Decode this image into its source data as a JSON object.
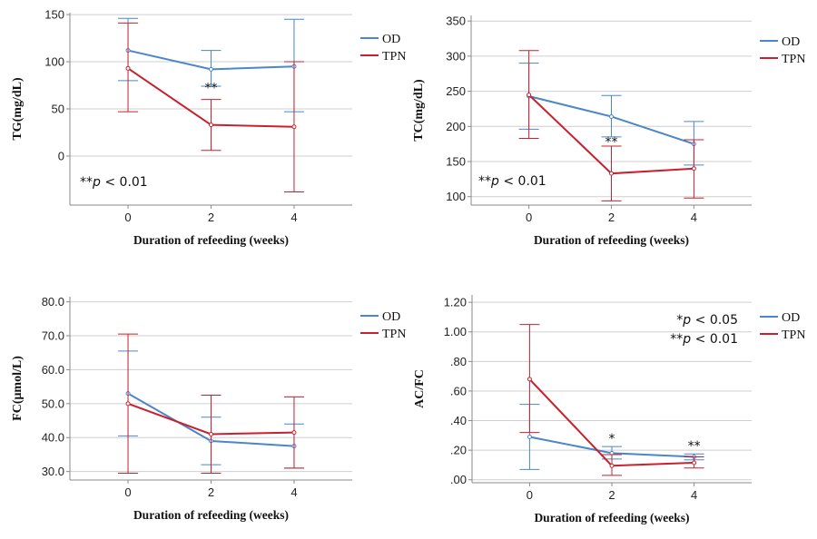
{
  "colors": {
    "OD": "#4a86c8",
    "TPN": "#c8202e",
    "grid": "#cfcfcf",
    "axis": "#8a8a8a"
  },
  "chart_data": [
    {
      "type": "line",
      "title": "",
      "xlabel": "Duration of refeeding (weeks)",
      "ylabel": "TG(mg/dL)",
      "x": [
        0,
        2,
        4
      ],
      "x_tick_labels": [
        "0",
        "2",
        "4"
      ],
      "xlim": [
        -1.4,
        5.4
      ],
      "ylim": [
        -52,
        152
      ],
      "yticks": [
        0,
        50,
        100,
        150
      ],
      "ytick_labels": [
        "0",
        "50",
        "100",
        "150"
      ],
      "grid": true,
      "legend_position": "right",
      "series": [
        {
          "name": "OD",
          "values": [
            112,
            92,
            95
          ],
          "err_low": [
            80,
            74,
            47
          ],
          "err_high": [
            146,
            112,
            145
          ]
        },
        {
          "name": "TPN",
          "values": [
            93,
            33,
            31
          ],
          "err_low": [
            47,
            6,
            -38
          ],
          "err_high": [
            141,
            60,
            100
          ]
        }
      ],
      "point_annotations": [
        {
          "x": 2,
          "y": 68,
          "text": "**"
        }
      ],
      "annotation_lines": [
        {
          "stars": "**",
          "p": "p",
          "op": " <  ",
          "value": "0.01"
        }
      ],
      "annotation_position": "bottom-left"
    },
    {
      "type": "line",
      "title": "",
      "xlabel": "Duration of refeeding (weeks)",
      "ylabel": "TC(mg/dL)",
      "x": [
        0,
        2,
        4
      ],
      "x_tick_labels": [
        "0",
        "2",
        "4"
      ],
      "xlim": [
        -1.4,
        5.4
      ],
      "ylim": [
        88,
        358
      ],
      "yticks": [
        100,
        150,
        200,
        250,
        300,
        350
      ],
      "ytick_labels": [
        "100",
        "150",
        "200",
        "250",
        "300",
        "350"
      ],
      "grid": true,
      "legend_position": "right",
      "series": [
        {
          "name": "OD",
          "values": [
            243,
            214,
            175
          ],
          "err_low": [
            196,
            185,
            145
          ],
          "err_high": [
            290,
            244,
            207
          ]
        },
        {
          "name": "TPN",
          "values": [
            245,
            133,
            140
          ],
          "err_low": [
            183,
            94,
            98
          ],
          "err_high": [
            308,
            172,
            181
          ]
        }
      ],
      "point_annotations": [
        {
          "x": 2,
          "y": 172,
          "text": "**"
        }
      ],
      "annotation_lines": [
        {
          "stars": "**",
          "p": "p",
          "op": " <  ",
          "value": "0.01"
        }
      ],
      "annotation_position": "bottom-left"
    },
    {
      "type": "line",
      "title": "",
      "xlabel": "Duration of refeeding (weeks)",
      "ylabel": "FC(μmol/L)",
      "x": [
        0,
        2,
        4
      ],
      "x_tick_labels": [
        "0",
        "2",
        "4"
      ],
      "xlim": [
        -1.4,
        5.4
      ],
      "ylim": [
        27.5,
        81.5
      ],
      "yticks": [
        30,
        40,
        50,
        60,
        70,
        80
      ],
      "ytick_labels": [
        "30.0",
        "40.0",
        "50.0",
        "60.0",
        "70.0",
        "80.0"
      ],
      "grid": true,
      "legend_position": "right",
      "series": [
        {
          "name": "OD",
          "values": [
            53,
            39,
            37.5
          ],
          "err_low": [
            40.5,
            32,
            31
          ],
          "err_high": [
            65.5,
            46,
            44
          ]
        },
        {
          "name": "TPN",
          "values": [
            50,
            41,
            41.5
          ],
          "err_low": [
            29.5,
            29.5,
            31
          ],
          "err_high": [
            70.5,
            52.5,
            52
          ]
        }
      ],
      "point_annotations": [],
      "annotation_lines": [],
      "annotation_position": "top-right"
    },
    {
      "type": "line",
      "title": "",
      "xlabel": "Duration of refeeding (weeks)",
      "ylabel": "AC/FC",
      "x": [
        0,
        2,
        4
      ],
      "x_tick_labels": [
        "0",
        "2",
        "4"
      ],
      "xlim": [
        -1.4,
        5.4
      ],
      "ylim": [
        -0.02,
        1.25
      ],
      "yticks": [
        0,
        0.2,
        0.4,
        0.6,
        0.8,
        1.0,
        1.2
      ],
      "ytick_labels": [
        ".00",
        ".20",
        ".40",
        ".60",
        ".80",
        "1.00",
        "1.20"
      ],
      "grid": true,
      "legend_position": "right",
      "series": [
        {
          "name": "OD",
          "values": [
            0.29,
            0.18,
            0.155
          ],
          "err_low": [
            0.07,
            0.14,
            0.135
          ],
          "err_high": [
            0.51,
            0.225,
            0.175
          ]
        },
        {
          "name": "TPN",
          "values": [
            0.68,
            0.095,
            0.115
          ],
          "err_low": [
            0.32,
            0.03,
            0.08
          ],
          "err_high": [
            1.05,
            0.17,
            0.155
          ]
        }
      ],
      "point_annotations": [
        {
          "x": 2,
          "y": 0.25,
          "text": "*"
        },
        {
          "x": 4,
          "y": 0.2,
          "text": "**"
        }
      ],
      "annotation_lines": [
        {
          "stars": "*",
          "p": "p",
          "op": " <  ",
          "value": "0.05"
        },
        {
          "stars": "**",
          "p": "p",
          "op": " <  ",
          "value": "0.01"
        }
      ],
      "annotation_position": "top-right"
    }
  ]
}
